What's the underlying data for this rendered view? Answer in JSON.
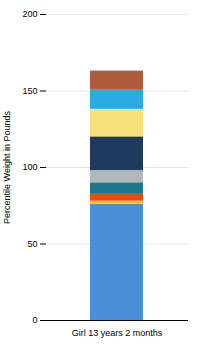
{
  "chart_data": {
    "type": "bar",
    "stacked": true,
    "categories": [
      "Girl 13 years 2 months"
    ],
    "ylabel": "Percentile Weight in Pounds",
    "series": [
      {
        "color": "#4a90d9",
        "values": [
          76
        ]
      },
      {
        "color": "#f5c520",
        "values": [
          2
        ]
      },
      {
        "color": "#e84a10",
        "values": [
          5
        ]
      },
      {
        "color": "#1a7a8a",
        "values": [
          7
        ]
      },
      {
        "color": "#b0b8bc",
        "values": [
          8
        ]
      },
      {
        "color": "#1e3a5f",
        "values": [
          22
        ]
      },
      {
        "color": "#f5e07a",
        "values": [
          18
        ]
      },
      {
        "color": "#29ade0",
        "values": [
          13
        ]
      },
      {
        "color": "#b05b3b",
        "values": [
          12
        ]
      }
    ],
    "ylim": [
      0,
      200
    ],
    "yticks": [
      0,
      50,
      100,
      150,
      200
    ],
    "grid": true
  }
}
